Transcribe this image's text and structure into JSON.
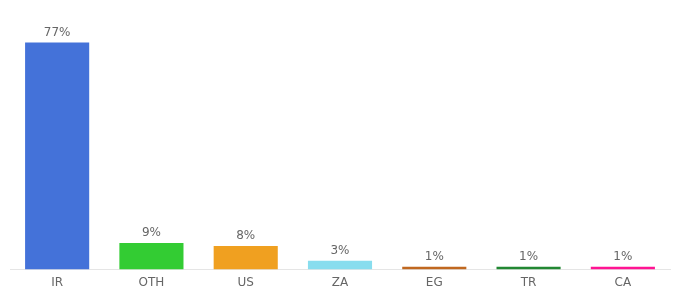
{
  "chart_data": {
    "type": "bar",
    "categories": [
      "IR",
      "OTH",
      "US",
      "ZA",
      "EG",
      "TR",
      "CA"
    ],
    "values": [
      77,
      9,
      8,
      3,
      1,
      1,
      1
    ],
    "value_labels": [
      "77%",
      "9%",
      "8%",
      "3%",
      "1%",
      "1%",
      "1%"
    ],
    "colors": [
      "#4472d9",
      "#33cc33",
      "#f0a020",
      "#88ddee",
      "#c06820",
      "#228833",
      "#ff1493"
    ],
    "data_labels": true,
    "ylim": [
      0,
      88
    ],
    "tick_labels": "x",
    "grid": false
  }
}
